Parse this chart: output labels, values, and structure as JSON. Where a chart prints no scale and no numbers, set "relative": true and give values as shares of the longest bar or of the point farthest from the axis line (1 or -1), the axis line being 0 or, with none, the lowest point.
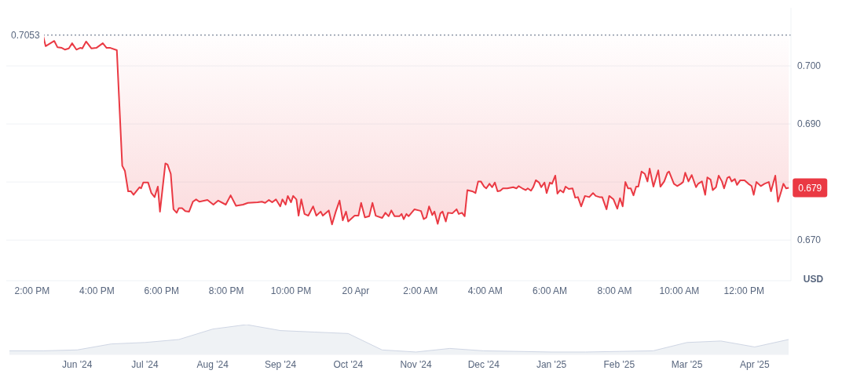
{
  "chart_data": [
    {
      "type": "line",
      "ylabel": "USD",
      "color": "#ea3943",
      "grid": "y",
      "legend": false,
      "x": [
        "--04-19T14:20",
        "--04-19T14:25",
        "--04-19T14:41",
        "--04-19T14:47",
        "--04-19T14:55",
        "--04-19T15:01",
        "--04-19T15:08",
        "--04-19T15:14",
        "--04-19T15:22",
        "--04-19T15:29",
        "--04-19T15:33",
        "--04-19T15:40",
        "--04-19T15:50",
        "--04-19T15:59",
        "--04-19T16:11",
        "--04-19T16:18",
        "--04-19T16:25",
        "--04-19T16:37",
        "--04-19T16:41",
        "--04-19T16:47",
        "--04-19T16:52",
        "--04-19T16:58",
        "--04-19T17:03",
        "--04-19T17:08",
        "--04-19T17:19",
        "--04-19T17:22",
        "--04-19T17:26",
        "--04-19T17:35",
        "--04-19T17:41",
        "--04-19T17:47",
        "--04-19T17:53",
        "--04-19T17:57",
        "--04-19T18:07",
        "--04-19T18:11",
        "--04-19T18:17",
        "--04-19T18:22",
        "--04-19T18:28",
        "--04-19T18:32",
        "--04-19T18:38",
        "--04-19T18:44",
        "--04-19T18:51",
        "--04-19T18:58",
        "--04-19T19:04",
        "--04-19T19:10",
        "--04-19T19:25",
        "--04-19T19:36",
        "--04-19T19:45",
        "--04-19T19:59",
        "--04-19T20:08",
        "--04-19T20:18",
        "--04-19T20:31",
        "--04-19T20:40",
        "--04-19T20:58",
        "--04-19T21:06",
        "--04-19T21:12",
        "--04-19T21:19",
        "--04-19T21:25",
        "--04-19T21:32",
        "--04-19T21:40",
        "--04-19T21:44",
        "--04-19T21:50",
        "--04-19T21:54",
        "--04-19T22:00",
        "--04-19T22:04",
        "--04-19T22:10",
        "--04-19T22:14",
        "--04-19T22:19",
        "--04-19T22:25",
        "--04-19T22:32",
        "--04-19T22:41",
        "--04-19T22:47",
        "--04-19T22:55",
        "--04-19T22:59",
        "--04-19T23:10",
        "--04-19T23:16",
        "--04-19T23:23",
        "--04-19T23:30",
        "--04-19T23:36",
        "--04-19T23:42",
        "--04-19T23:46",
        "--04-19T23:58",
        "--04-20T00:05",
        "--04-20T00:10",
        "--04-20T00:17",
        "--04-20T00:25",
        "--04-20T00:31",
        "--04-20T00:37",
        "--04-20T00:49",
        "--04-20T00:55",
        "--04-20T01:01",
        "--04-20T01:06",
        "--04-20T01:12",
        "--04-20T01:21",
        "--04-20T01:25",
        "--04-20T01:29",
        "--04-20T01:34",
        "--04-20T01:38",
        "--04-20T01:49",
        "--04-20T01:57",
        "--04-20T02:01",
        "--04-20T02:06",
        "--04-20T02:11",
        "--04-20T02:16",
        "--04-20T02:22",
        "--04-20T02:26",
        "--04-20T02:32",
        "--04-20T02:37",
        "--04-20T02:41",
        "--04-20T02:47",
        "--04-20T02:51",
        "--04-20T02:59",
        "--04-20T03:07",
        "--04-20T03:11",
        "--04-20T03:17",
        "--04-20T03:22",
        "--04-20T03:27",
        "--04-20T03:36",
        "--04-20T03:42",
        "--04-20T03:47",
        "--04-20T03:52",
        "--04-20T03:58",
        "--04-20T04:02",
        "--04-20T04:08",
        "--04-20T04:13",
        "--04-20T04:18",
        "--04-20T04:23",
        "--04-20T04:28",
        "--04-20T04:33",
        "--04-20T04:41",
        "--04-20T04:52",
        "--04-20T04:58",
        "--04-20T05:02",
        "--04-20T05:09",
        "--04-20T05:15",
        "--04-20T05:19",
        "--04-20T05:25",
        "--04-20T05:29",
        "--04-20T05:34",
        "--04-20T05:40",
        "--04-20T05:44",
        "--04-20T05:50",
        "--04-20T05:54",
        "--04-20T06:00",
        "--04-20T06:04",
        "--04-20T06:10",
        "--04-20T06:14",
        "--04-20T06:19",
        "--04-20T06:25",
        "--04-20T06:29",
        "--04-20T06:35",
        "--04-20T06:42",
        "--04-20T06:47",
        "--04-20T06:52",
        "--04-20T06:58",
        "--04-20T07:05",
        "--04-20T07:13",
        "--04-20T07:20",
        "--04-20T07:25",
        "--04-20T07:32",
        "--04-20T07:37",
        "--04-20T07:45",
        "--04-20T07:50",
        "--04-20T07:58",
        "--04-20T08:05",
        "--04-20T08:10",
        "--04-20T08:15",
        "--04-20T08:20",
        "--04-20T08:25",
        "--04-20T08:30",
        "--04-20T08:35",
        "--04-20T08:40",
        "--04-20T08:44",
        "--04-20T08:50",
        "--04-20T08:56",
        "--04-20T09:01",
        "--04-20T09:05",
        "--04-20T09:12",
        "--04-20T09:21",
        "--04-20T09:25",
        "--04-20T09:32",
        "--04-20T09:38",
        "--04-20T09:41",
        "--04-20T09:50",
        "--04-20T09:56",
        "--04-20T10:03",
        "--04-20T10:07",
        "--04-20T10:11",
        "--04-20T10:17",
        "--04-20T10:23",
        "--04-20T10:31",
        "--04-20T10:35",
        "--04-20T10:42",
        "--04-20T10:48",
        "--04-20T10:52",
        "--04-20T10:58",
        "--04-20T11:02",
        "--04-20T11:08",
        "--04-20T11:13",
        "--04-20T11:19",
        "--04-20T11:23",
        "--04-20T11:29",
        "--04-20T11:33",
        "--04-20T11:37",
        "--04-20T11:43",
        "--04-20T11:47",
        "--04-20T11:53",
        "--04-20T12:01",
        "--04-20T12:08",
        "--04-20T12:14",
        "--04-20T12:18",
        "--04-20T12:23",
        "--04-20T12:31",
        "--04-20T12:38",
        "--04-20T12:46",
        "--04-20T12:50",
        "--04-20T12:58",
        "--04-20T13:03",
        "--04-20T13:09",
        "--04-20T13:13",
        "--04-20T13:18",
        "--04-20T13:23"
      ],
      "values": [
        0.7053,
        0.7034,
        0.7043,
        0.7032,
        0.7031,
        0.7028,
        0.703,
        0.7039,
        0.7028,
        0.7031,
        0.703,
        0.7042,
        0.703,
        0.7031,
        0.7039,
        0.7031,
        0.7031,
        0.7027,
        0.6947,
        0.6828,
        0.6819,
        0.6784,
        0.6784,
        0.6778,
        0.6791,
        0.6789,
        0.6799,
        0.6799,
        0.6781,
        0.6774,
        0.6792,
        0.6749,
        0.6832,
        0.683,
        0.6814,
        0.6753,
        0.6747,
        0.6755,
        0.6755,
        0.675,
        0.6749,
        0.6766,
        0.677,
        0.6766,
        0.6769,
        0.6761,
        0.6768,
        0.6761,
        0.6777,
        0.6759,
        0.6761,
        0.6764,
        0.6765,
        0.6766,
        0.6764,
        0.6769,
        0.6765,
        0.677,
        0.6758,
        0.677,
        0.6761,
        0.6776,
        0.6765,
        0.6776,
        0.677,
        0.6742,
        0.677,
        0.6745,
        0.6742,
        0.6758,
        0.6742,
        0.6749,
        0.6742,
        0.6751,
        0.6727,
        0.6749,
        0.6768,
        0.6734,
        0.6749,
        0.6732,
        0.6742,
        0.6742,
        0.6764,
        0.6739,
        0.6741,
        0.6764,
        0.6742,
        0.6738,
        0.6747,
        0.6741,
        0.6751,
        0.6741,
        0.6741,
        0.6745,
        0.6736,
        0.6745,
        0.6741,
        0.6753,
        0.6751,
        0.675,
        0.6736,
        0.6739,
        0.6758,
        0.6743,
        0.6749,
        0.6728,
        0.6746,
        0.6749,
        0.6732,
        0.6747,
        0.6746,
        0.6753,
        0.6745,
        0.6747,
        0.6741,
        0.6786,
        0.6784,
        0.6781,
        0.6801,
        0.6801,
        0.6792,
        0.6789,
        0.6797,
        0.6791,
        0.6799,
        0.6784,
        0.6785,
        0.6789,
        0.6789,
        0.6791,
        0.6789,
        0.6793,
        0.6789,
        0.6786,
        0.6789,
        0.6785,
        0.6791,
        0.6803,
        0.6799,
        0.6791,
        0.6799,
        0.6781,
        0.6799,
        0.6797,
        0.6811,
        0.678,
        0.6786,
        0.6782,
        0.6792,
        0.6788,
        0.6789,
        0.6773,
        0.6774,
        0.6758,
        0.6776,
        0.6774,
        0.6781,
        0.6776,
        0.6774,
        0.6774,
        0.6753,
        0.6776,
        0.677,
        0.6754,
        0.6772,
        0.6758,
        0.68,
        0.6789,
        0.6789,
        0.6777,
        0.6792,
        0.6792,
        0.6818,
        0.6814,
        0.6801,
        0.6823,
        0.6792,
        0.682,
        0.6792,
        0.6801,
        0.6816,
        0.6818,
        0.6797,
        0.6793,
        0.6797,
        0.68,
        0.6816,
        0.6801,
        0.6812,
        0.6791,
        0.6797,
        0.6801,
        0.6778,
        0.6808,
        0.6804,
        0.6786,
        0.6791,
        0.6811,
        0.6801,
        0.6789,
        0.6807,
        0.6809,
        0.6801,
        0.6805,
        0.6795,
        0.6803,
        0.6803,
        0.6797,
        0.6793,
        0.6778,
        0.68,
        0.6793,
        0.6797,
        0.68,
        0.6784,
        0.6811,
        0.6766,
        0.6784,
        0.6797,
        0.6789,
        0.679
      ],
      "xlim": [
        "--04-19T13:12",
        "--04-20T13:27"
      ],
      "xticks": [
        {
          "value": "--04-19T14:00",
          "label": "2:00 PM"
        },
        {
          "value": "--04-19T16:00",
          "label": "4:00 PM"
        },
        {
          "value": "--04-19T18:00",
          "label": "6:00 PM"
        },
        {
          "value": "--04-19T20:00",
          "label": "8:00 PM"
        },
        {
          "value": "--04-19T22:00",
          "label": "10:00 PM"
        },
        {
          "value": "--04-20T00:00",
          "label": "20 Apr"
        },
        {
          "value": "--04-20T02:00",
          "label": "2:00 AM"
        },
        {
          "value": "--04-20T04:00",
          "label": "4:00 AM"
        },
        {
          "value": "--04-20T06:00",
          "label": "6:00 AM"
        },
        {
          "value": "--04-20T08:00",
          "label": "8:00 AM"
        },
        {
          "value": "--04-20T10:00",
          "label": "10:00 AM"
        },
        {
          "value": "--04-20T12:00",
          "label": "12:00 PM"
        }
      ],
      "ylim": [
        0.663,
        0.71
      ],
      "yticks": [
        {
          "value": 0.67,
          "label": "0.670"
        },
        {
          "value": 0.68,
          "label": null
        },
        {
          "value": 0.69,
          "label": "0.690"
        },
        {
          "value": 0.7,
          "label": "0.700"
        }
      ],
      "ref_lines": [
        {
          "axis": "y",
          "value": 0.7053,
          "label": "0.7053",
          "line_style": "dotted",
          "color": "#58667e"
        }
      ],
      "annotations": [
        {
          "text": "0.679",
          "x": "--04-20T13:23",
          "y": 0.679
        }
      ]
    },
    {
      "type": "area",
      "relative": true,
      "color": "#cfd6e4",
      "categories": [
        null,
        null,
        "Jun '24",
        null,
        "Jul '24",
        null,
        "Aug '24",
        null,
        "Sep '24",
        null,
        "Oct '24",
        null,
        "Nov '24",
        null,
        "Dec '24",
        null,
        "Jan '25",
        null,
        "Feb '25",
        null,
        "Mar '25",
        null,
        "Apr '25",
        null
      ],
      "values": [
        0.12,
        0.12,
        0.15,
        0.35,
        0.4,
        0.5,
        0.85,
        1,
        0.8,
        0.75,
        0.7,
        0.15,
        0.08,
        0.2,
        0.12,
        0.1,
        0.08,
        0.08,
        0.1,
        0.12,
        0.4,
        0.45,
        0.25,
        0.5
      ]
    }
  ]
}
